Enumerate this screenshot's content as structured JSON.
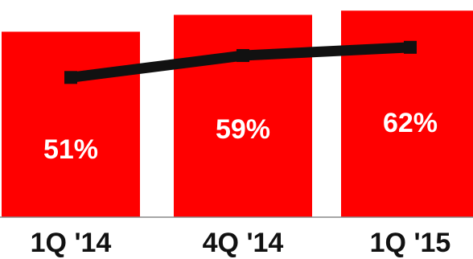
{
  "chart_data": {
    "type": "bar",
    "categories": [
      "1Q '14",
      "4Q '14",
      "1Q '15"
    ],
    "series": [
      {
        "values": [
          51,
          59,
          62
        ]
      }
    ],
    "data_labels": [
      "51%",
      "59%",
      "62%"
    ],
    "bar_values": [
      88,
      96,
      98
    ],
    "line_values": [
      51,
      59,
      62
    ],
    "title": "",
    "xlabel": "",
    "ylabel": "",
    "ylim": [
      0,
      100
    ],
    "grid": false,
    "legend": "none",
    "colors": {
      "bar": "#ff0000",
      "line": "#111111",
      "axis": "#888888",
      "label": "#ffffff",
      "tick": "#111111"
    }
  }
}
